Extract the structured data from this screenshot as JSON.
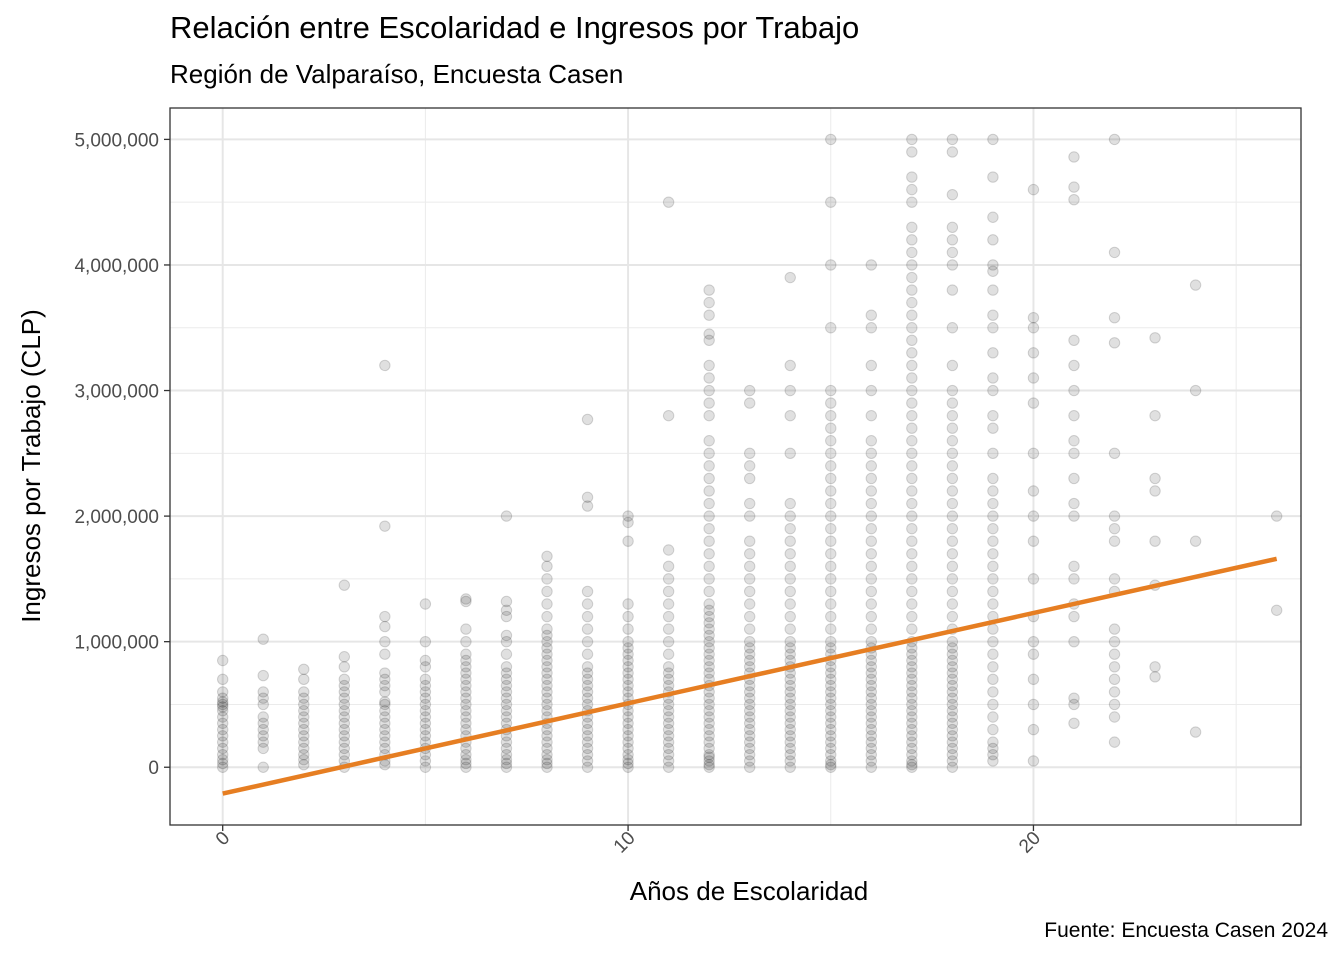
{
  "chart_data": {
    "type": "scatter",
    "title": "Relación entre Escolaridad e Ingresos por Trabajo",
    "subtitle": "Región de Valparaíso, Encuesta Casen",
    "caption": "Fuente: Encuesta Casen 2024",
    "xlabel": "Años de Escolaridad",
    "ylabel": "Ingresos por Trabajo (CLP)",
    "xlim": [
      -1.3,
      26.6
    ],
    "ylim": [
      -460000,
      5250000
    ],
    "x_ticks": [
      0,
      10,
      20
    ],
    "x_tick_labels": [
      "0",
      "10",
      "20"
    ],
    "y_ticks": [
      0,
      1000000,
      2000000,
      3000000,
      4000000,
      5000000
    ],
    "y_tick_labels": [
      "0",
      "1,000,000",
      "2,000,000",
      "3,000,000",
      "4,000,000",
      "5,000,000"
    ],
    "grid": true,
    "point_color": "#000000",
    "point_alpha": 0.12,
    "trend_color": "#e67e22",
    "trend_line": {
      "x": [
        0,
        26
      ],
      "y": [
        -210000,
        1660000
      ]
    },
    "points_by_years": [
      {
        "x": 0,
        "y": [
          0,
          30000,
          60000,
          100000,
          150000,
          200000,
          250000,
          300000,
          350000,
          400000,
          450000,
          480000,
          500000,
          520000,
          550000,
          600000,
          700000,
          850000
        ]
      },
      {
        "x": 1,
        "y": [
          0,
          150000,
          200000,
          250000,
          300000,
          350000,
          400000,
          500000,
          550000,
          600000,
          730000,
          1020000
        ]
      },
      {
        "x": 2,
        "y": [
          20000,
          60000,
          100000,
          150000,
          200000,
          250000,
          300000,
          350000,
          400000,
          450000,
          500000,
          550000,
          600000,
          700000,
          780000
        ]
      },
      {
        "x": 3,
        "y": [
          0,
          50000,
          100000,
          150000,
          200000,
          250000,
          300000,
          350000,
          400000,
          450000,
          500000,
          550000,
          600000,
          650000,
          700000,
          800000,
          880000,
          1450000
        ]
      },
      {
        "x": 4,
        "y": [
          20000,
          50000,
          100000,
          150000,
          200000,
          250000,
          300000,
          350000,
          400000,
          450000,
          500000,
          520000,
          600000,
          650000,
          700000,
          750000,
          900000,
          1000000,
          1120000,
          1200000,
          1920000,
          3200000
        ]
      },
      {
        "x": 5,
        "y": [
          0,
          50000,
          100000,
          150000,
          200000,
          250000,
          300000,
          350000,
          400000,
          450000,
          500000,
          550000,
          600000,
          650000,
          700000,
          800000,
          850000,
          1000000,
          1300000
        ]
      },
      {
        "x": 6,
        "y": [
          0,
          30000,
          60000,
          100000,
          150000,
          200000,
          250000,
          300000,
          350000,
          400000,
          450000,
          500000,
          550000,
          600000,
          650000,
          700000,
          750000,
          800000,
          850000,
          900000,
          1000000,
          1100000,
          1320000,
          1340000
        ]
      },
      {
        "x": 7,
        "y": [
          0,
          30000,
          60000,
          100000,
          150000,
          200000,
          250000,
          300000,
          350000,
          400000,
          450000,
          500000,
          550000,
          600000,
          650000,
          700000,
          750000,
          800000,
          900000,
          1000000,
          1050000,
          1200000,
          1250000,
          1320000,
          2000000
        ]
      },
      {
        "x": 8,
        "y": [
          0,
          30000,
          60000,
          100000,
          150000,
          200000,
          250000,
          300000,
          350000,
          400000,
          450000,
          500000,
          550000,
          600000,
          650000,
          700000,
          750000,
          800000,
          850000,
          900000,
          950000,
          1000000,
          1050000,
          1100000,
          1200000,
          1300000,
          1400000,
          1500000,
          1600000,
          1680000
        ]
      },
      {
        "x": 9,
        "y": [
          0,
          50000,
          100000,
          150000,
          200000,
          250000,
          300000,
          350000,
          400000,
          450000,
          500000,
          550000,
          600000,
          650000,
          700000,
          750000,
          800000,
          900000,
          1000000,
          1100000,
          1200000,
          1300000,
          1400000,
          2080000,
          2150000,
          2770000
        ]
      },
      {
        "x": 10,
        "y": [
          0,
          30000,
          60000,
          100000,
          150000,
          200000,
          250000,
          300000,
          350000,
          400000,
          450000,
          500000,
          550000,
          600000,
          650000,
          700000,
          750000,
          800000,
          850000,
          900000,
          950000,
          1000000,
          1100000,
          1200000,
          1300000,
          1800000,
          1950000,
          2000000
        ]
      },
      {
        "x": 11,
        "y": [
          0,
          50000,
          100000,
          150000,
          200000,
          250000,
          300000,
          350000,
          400000,
          450000,
          500000,
          550000,
          600000,
          650000,
          700000,
          750000,
          800000,
          900000,
          1000000,
          1100000,
          1200000,
          1300000,
          1400000,
          1500000,
          1600000,
          1730000,
          2800000,
          4500000
        ]
      },
      {
        "x": 12,
        "y": [
          0,
          20000,
          50000,
          80000,
          100000,
          150000,
          200000,
          250000,
          300000,
          350000,
          400000,
          450000,
          500000,
          550000,
          600000,
          650000,
          700000,
          750000,
          800000,
          850000,
          900000,
          950000,
          1000000,
          1050000,
          1100000,
          1150000,
          1200000,
          1250000,
          1300000,
          1400000,
          1500000,
          1600000,
          1700000,
          1800000,
          1900000,
          2000000,
          2100000,
          2200000,
          2300000,
          2400000,
          2500000,
          2600000,
          2800000,
          2900000,
          3000000,
          3100000,
          3200000,
          3400000,
          3450000,
          3600000,
          3700000,
          3800000
        ]
      },
      {
        "x": 13,
        "y": [
          0,
          50000,
          100000,
          150000,
          200000,
          250000,
          300000,
          350000,
          400000,
          450000,
          500000,
          550000,
          600000,
          650000,
          700000,
          750000,
          800000,
          850000,
          900000,
          950000,
          1000000,
          1100000,
          1200000,
          1300000,
          1400000,
          1500000,
          1600000,
          1700000,
          1800000,
          2000000,
          2100000,
          2300000,
          2400000,
          2500000,
          2900000,
          3000000
        ]
      },
      {
        "x": 14,
        "y": [
          0,
          50000,
          100000,
          150000,
          200000,
          250000,
          300000,
          350000,
          400000,
          450000,
          500000,
          550000,
          600000,
          650000,
          700000,
          750000,
          800000,
          850000,
          900000,
          950000,
          1000000,
          1100000,
          1200000,
          1300000,
          1400000,
          1500000,
          1600000,
          1700000,
          1800000,
          1900000,
          2000000,
          2100000,
          2500000,
          2800000,
          3000000,
          3200000,
          3900000
        ]
      },
      {
        "x": 15,
        "y": [
          0,
          20000,
          50000,
          100000,
          150000,
          200000,
          250000,
          300000,
          350000,
          400000,
          450000,
          500000,
          550000,
          600000,
          650000,
          700000,
          750000,
          800000,
          850000,
          900000,
          950000,
          1000000,
          1100000,
          1200000,
          1300000,
          1400000,
          1500000,
          1600000,
          1700000,
          1800000,
          1900000,
          2000000,
          2100000,
          2200000,
          2300000,
          2400000,
          2500000,
          2600000,
          2700000,
          2800000,
          2900000,
          3000000,
          3500000,
          4000000,
          4500000,
          5000000
        ]
      },
      {
        "x": 16,
        "y": [
          0,
          50000,
          100000,
          150000,
          200000,
          250000,
          300000,
          350000,
          400000,
          450000,
          500000,
          550000,
          600000,
          650000,
          700000,
          750000,
          800000,
          850000,
          900000,
          950000,
          1000000,
          1100000,
          1200000,
          1300000,
          1400000,
          1500000,
          1600000,
          1700000,
          1800000,
          1900000,
          2000000,
          2100000,
          2200000,
          2300000,
          2400000,
          2500000,
          2600000,
          2800000,
          3000000,
          3200000,
          3500000,
          3600000,
          4000000
        ]
      },
      {
        "x": 17,
        "y": [
          0,
          20000,
          50000,
          100000,
          150000,
          200000,
          250000,
          300000,
          350000,
          400000,
          450000,
          500000,
          550000,
          600000,
          650000,
          700000,
          750000,
          800000,
          850000,
          900000,
          950000,
          1000000,
          1100000,
          1200000,
          1300000,
          1400000,
          1500000,
          1600000,
          1700000,
          1800000,
          1900000,
          2000000,
          2100000,
          2200000,
          2300000,
          2400000,
          2500000,
          2600000,
          2700000,
          2800000,
          2900000,
          3000000,
          3100000,
          3200000,
          3300000,
          3400000,
          3500000,
          3600000,
          3700000,
          3800000,
          3900000,
          4000000,
          4100000,
          4200000,
          4300000,
          4500000,
          4600000,
          4700000,
          4900000,
          5000000
        ]
      },
      {
        "x": 18,
        "y": [
          0,
          50000,
          100000,
          150000,
          200000,
          250000,
          300000,
          350000,
          400000,
          450000,
          500000,
          550000,
          600000,
          650000,
          700000,
          750000,
          800000,
          850000,
          900000,
          950000,
          1000000,
          1100000,
          1200000,
          1300000,
          1400000,
          1500000,
          1600000,
          1700000,
          1800000,
          1900000,
          2000000,
          2100000,
          2200000,
          2300000,
          2400000,
          2500000,
          2600000,
          2700000,
          2800000,
          2900000,
          3000000,
          3200000,
          3500000,
          3800000,
          4000000,
          4100000,
          4200000,
          4300000,
          4560000,
          4900000,
          5000000
        ]
      },
      {
        "x": 19,
        "y": [
          50000,
          100000,
          150000,
          200000,
          300000,
          400000,
          500000,
          600000,
          700000,
          800000,
          900000,
          1000000,
          1100000,
          1200000,
          1300000,
          1400000,
          1500000,
          1600000,
          1700000,
          1800000,
          1900000,
          2000000,
          2100000,
          2200000,
          2300000,
          2500000,
          2700000,
          2800000,
          3000000,
          3100000,
          3300000,
          3500000,
          3600000,
          3800000,
          3950000,
          4000000,
          4200000,
          4380000,
          4700000,
          5000000
        ]
      },
      {
        "x": 20,
        "y": [
          50000,
          300000,
          500000,
          700000,
          900000,
          1000000,
          1200000,
          1500000,
          1800000,
          2000000,
          2200000,
          2500000,
          2900000,
          3100000,
          3300000,
          3500000,
          3580000,
          4600000
        ]
      },
      {
        "x": 21,
        "y": [
          350000,
          500000,
          550000,
          1000000,
          1200000,
          1300000,
          1500000,
          1600000,
          2000000,
          2100000,
          2300000,
          2500000,
          2600000,
          2800000,
          3000000,
          3200000,
          3400000,
          4520000,
          4620000,
          4860000
        ]
      },
      {
        "x": 22,
        "y": [
          200000,
          400000,
          500000,
          600000,
          700000,
          800000,
          900000,
          1000000,
          1100000,
          1400000,
          1500000,
          1800000,
          1900000,
          2000000,
          2500000,
          3380000,
          3580000,
          4100000,
          5000000
        ]
      },
      {
        "x": 23,
        "y": [
          720000,
          800000,
          1450000,
          1800000,
          2200000,
          2300000,
          2800000,
          3420000
        ]
      },
      {
        "x": 24,
        "y": [
          280000,
          1800000,
          3000000,
          3840000
        ]
      },
      {
        "x": 26,
        "y": [
          1250000,
          2000000
        ]
      }
    ]
  }
}
